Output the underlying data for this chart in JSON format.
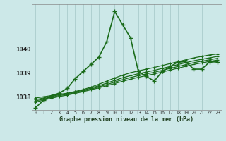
{
  "title": "Graphe pression niveau de la mer (hPa)",
  "bg_color": "#cce8e8",
  "grid_color": "#aacccc",
  "line_color": "#1a6b1a",
  "xlim": [
    -0.5,
    23.5
  ],
  "ylim": [
    1037.45,
    1041.85
  ],
  "yticks": [
    1038,
    1039,
    1040
  ],
  "xtick_labels": [
    "0",
    "1",
    "2",
    "3",
    "4",
    "5",
    "6",
    "7",
    "8",
    "9",
    "10",
    "11",
    "12",
    "13",
    "14",
    "15",
    "16",
    "17",
    "18",
    "19",
    "20",
    "21",
    "22",
    "23"
  ],
  "series": [
    [
      1037.55,
      1037.85,
      1038.05,
      1038.15,
      1038.35,
      1038.75,
      1039.05,
      1039.35,
      1039.65,
      1040.3,
      1041.55,
      1041.0,
      1040.45,
      1039.05,
      1038.85,
      1038.65,
      1039.05,
      1039.25,
      1039.45,
      1039.45,
      1039.15,
      1039.15,
      1039.45,
      1039.45
    ],
    [
      1037.95,
      1038.0,
      1038.05,
      1038.1,
      1038.15,
      1038.22,
      1038.3,
      1038.4,
      1038.52,
      1038.65,
      1038.78,
      1038.9,
      1039.0,
      1039.08,
      1039.15,
      1039.22,
      1039.3,
      1039.38,
      1039.46,
      1039.54,
      1039.62,
      1039.68,
      1039.74,
      1039.78
    ],
    [
      1037.88,
      1037.95,
      1038.02,
      1038.08,
      1038.13,
      1038.2,
      1038.27,
      1038.36,
      1038.46,
      1038.57,
      1038.68,
      1038.79,
      1038.88,
      1038.96,
      1039.03,
      1039.1,
      1039.18,
      1039.26,
      1039.34,
      1039.42,
      1039.5,
      1039.56,
      1039.62,
      1039.68
    ],
    [
      1037.83,
      1037.9,
      1037.98,
      1038.05,
      1038.1,
      1038.17,
      1038.24,
      1038.32,
      1038.41,
      1038.51,
      1038.61,
      1038.71,
      1038.8,
      1038.88,
      1038.95,
      1039.02,
      1039.1,
      1039.18,
      1039.26,
      1039.34,
      1039.42,
      1039.48,
      1039.54,
      1039.6
    ],
    [
      1037.78,
      1037.86,
      1037.94,
      1038.01,
      1038.07,
      1038.14,
      1038.21,
      1038.29,
      1038.37,
      1038.46,
      1038.55,
      1038.64,
      1038.73,
      1038.81,
      1038.88,
      1038.95,
      1039.03,
      1039.11,
      1039.19,
      1039.27,
      1039.35,
      1039.41,
      1039.47,
      1039.53
    ]
  ]
}
